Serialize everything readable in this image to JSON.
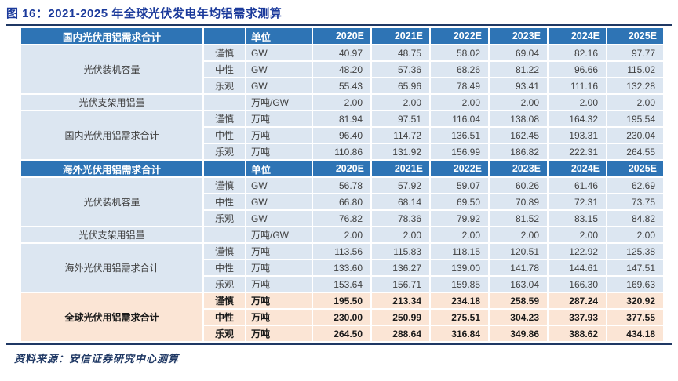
{
  "title": "图 16：2021-2025 年全球光伏发电年均铝需求测算",
  "source": "资料来源：安信证券研究中心测算",
  "unit_header": "单位",
  "years": [
    "2020E",
    "2021E",
    "2022E",
    "2023E",
    "2024E",
    "2025E"
  ],
  "colors": {
    "header_bg": "#2E74B5",
    "row_bg": "#DCE6F1",
    "global_bg": "#FBE5D5",
    "title_color": "#1B3A9B",
    "rule_color": "#1F3864",
    "text_color": "#404040"
  },
  "sections": [
    {
      "header": "国内光伏用铝需求合计",
      "global": false,
      "groups": [
        {
          "label": "光伏装机容量",
          "rows": [
            {
              "scenario": "谨慎",
              "unit": "GW",
              "values": [
                "40.97",
                "48.75",
                "58.02",
                "69.04",
                "82.16",
                "97.77"
              ]
            },
            {
              "scenario": "中性",
              "unit": "GW",
              "values": [
                "48.20",
                "57.36",
                "68.26",
                "81.22",
                "96.66",
                "115.02"
              ]
            },
            {
              "scenario": "乐观",
              "unit": "GW",
              "values": [
                "55.43",
                "65.96",
                "78.49",
                "93.41",
                "111.16",
                "132.28"
              ]
            }
          ]
        },
        {
          "label": "光伏支架用铝量",
          "rows": [
            {
              "scenario": "",
              "unit": "万吨/GW",
              "values": [
                "2.00",
                "2.00",
                "2.00",
                "2.00",
                "2.00",
                "2.00"
              ]
            }
          ]
        },
        {
          "label": "国内光伏用铝需求合计",
          "rows": [
            {
              "scenario": "谨慎",
              "unit": "万吨",
              "values": [
                "81.94",
                "97.51",
                "116.04",
                "138.08",
                "164.32",
                "195.54"
              ]
            },
            {
              "scenario": "中性",
              "unit": "万吨",
              "values": [
                "96.40",
                "114.72",
                "136.51",
                "162.45",
                "193.31",
                "230.04"
              ]
            },
            {
              "scenario": "乐观",
              "unit": "万吨",
              "values": [
                "110.86",
                "131.92",
                "156.99",
                "186.82",
                "222.31",
                "264.55"
              ]
            }
          ]
        }
      ]
    },
    {
      "header": "海外光伏用铝需求合计",
      "global": false,
      "groups": [
        {
          "label": "光伏装机容量",
          "rows": [
            {
              "scenario": "谨慎",
              "unit": "GW",
              "values": [
                "56.78",
                "57.92",
                "59.07",
                "60.26",
                "61.46",
                "62.69"
              ]
            },
            {
              "scenario": "中性",
              "unit": "GW",
              "values": [
                "66.80",
                "68.14",
                "69.50",
                "70.89",
                "72.31",
                "73.75"
              ]
            },
            {
              "scenario": "乐观",
              "unit": "GW",
              "values": [
                "76.82",
                "78.36",
                "79.92",
                "81.52",
                "83.15",
                "84.82"
              ]
            }
          ]
        },
        {
          "label": "光伏支架用铝量",
          "rows": [
            {
              "scenario": "",
              "unit": "万吨/GW",
              "values": [
                "2.00",
                "2.00",
                "2.00",
                "2.00",
                "2.00",
                "2.00"
              ]
            }
          ]
        },
        {
          "label": "海外光伏用铝需求合计",
          "rows": [
            {
              "scenario": "谨慎",
              "unit": "万吨",
              "values": [
                "113.56",
                "115.83",
                "118.15",
                "120.51",
                "122.92",
                "125.38"
              ]
            },
            {
              "scenario": "中性",
              "unit": "万吨",
              "values": [
                "133.60",
                "136.27",
                "139.00",
                "141.78",
                "144.61",
                "147.51"
              ]
            },
            {
              "scenario": "乐观",
              "unit": "万吨",
              "values": [
                "153.64",
                "156.71",
                "159.85",
                "163.04",
                "166.30",
                "169.63"
              ]
            }
          ]
        }
      ]
    },
    {
      "header": null,
      "global": true,
      "groups": [
        {
          "label": "全球光伏用铝需求合计",
          "rows": [
            {
              "scenario": "谨慎",
              "unit": "万吨",
              "values": [
                "195.50",
                "213.34",
                "234.18",
                "258.59",
                "287.24",
                "320.92"
              ]
            },
            {
              "scenario": "中性",
              "unit": "万吨",
              "values": [
                "230.00",
                "250.99",
                "275.51",
                "304.23",
                "337.93",
                "377.55"
              ]
            },
            {
              "scenario": "乐观",
              "unit": "万吨",
              "values": [
                "264.50",
                "288.64",
                "316.84",
                "349.86",
                "388.62",
                "434.18"
              ]
            }
          ]
        }
      ]
    }
  ]
}
